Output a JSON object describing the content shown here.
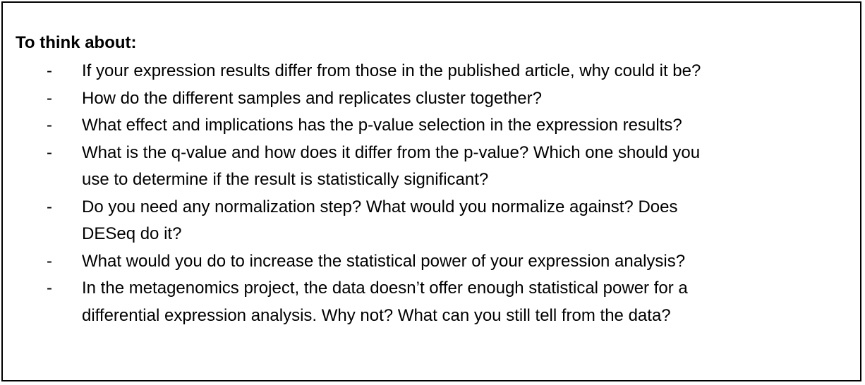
{
  "heading": "To think about:",
  "bullet_marker": "-",
  "items": [
    {
      "lines": [
        "If your expression results differ from those in the published article, why could it be?"
      ]
    },
    {
      "lines": [
        "How do the different samples and replicates cluster together?"
      ]
    },
    {
      "lines": [
        "What effect and implications has the p-value selection in the expression results?"
      ]
    },
    {
      "lines": [
        "What is the q-value and how does it differ from the p-value? Which one should you",
        "use to determine if the result is statistically significant?"
      ]
    },
    {
      "lines": [
        "Do you need any normalization step? What would you normalize against? Does",
        "DESeq do it?"
      ]
    },
    {
      "lines": [
        "What would you do to increase the statistical power of your expression analysis?"
      ]
    },
    {
      "lines": [
        "In the metagenomics project, the data doesn’t offer enough statistical power for a",
        "differential expression analysis. Why not? What can you still tell from the data?"
      ]
    }
  ]
}
